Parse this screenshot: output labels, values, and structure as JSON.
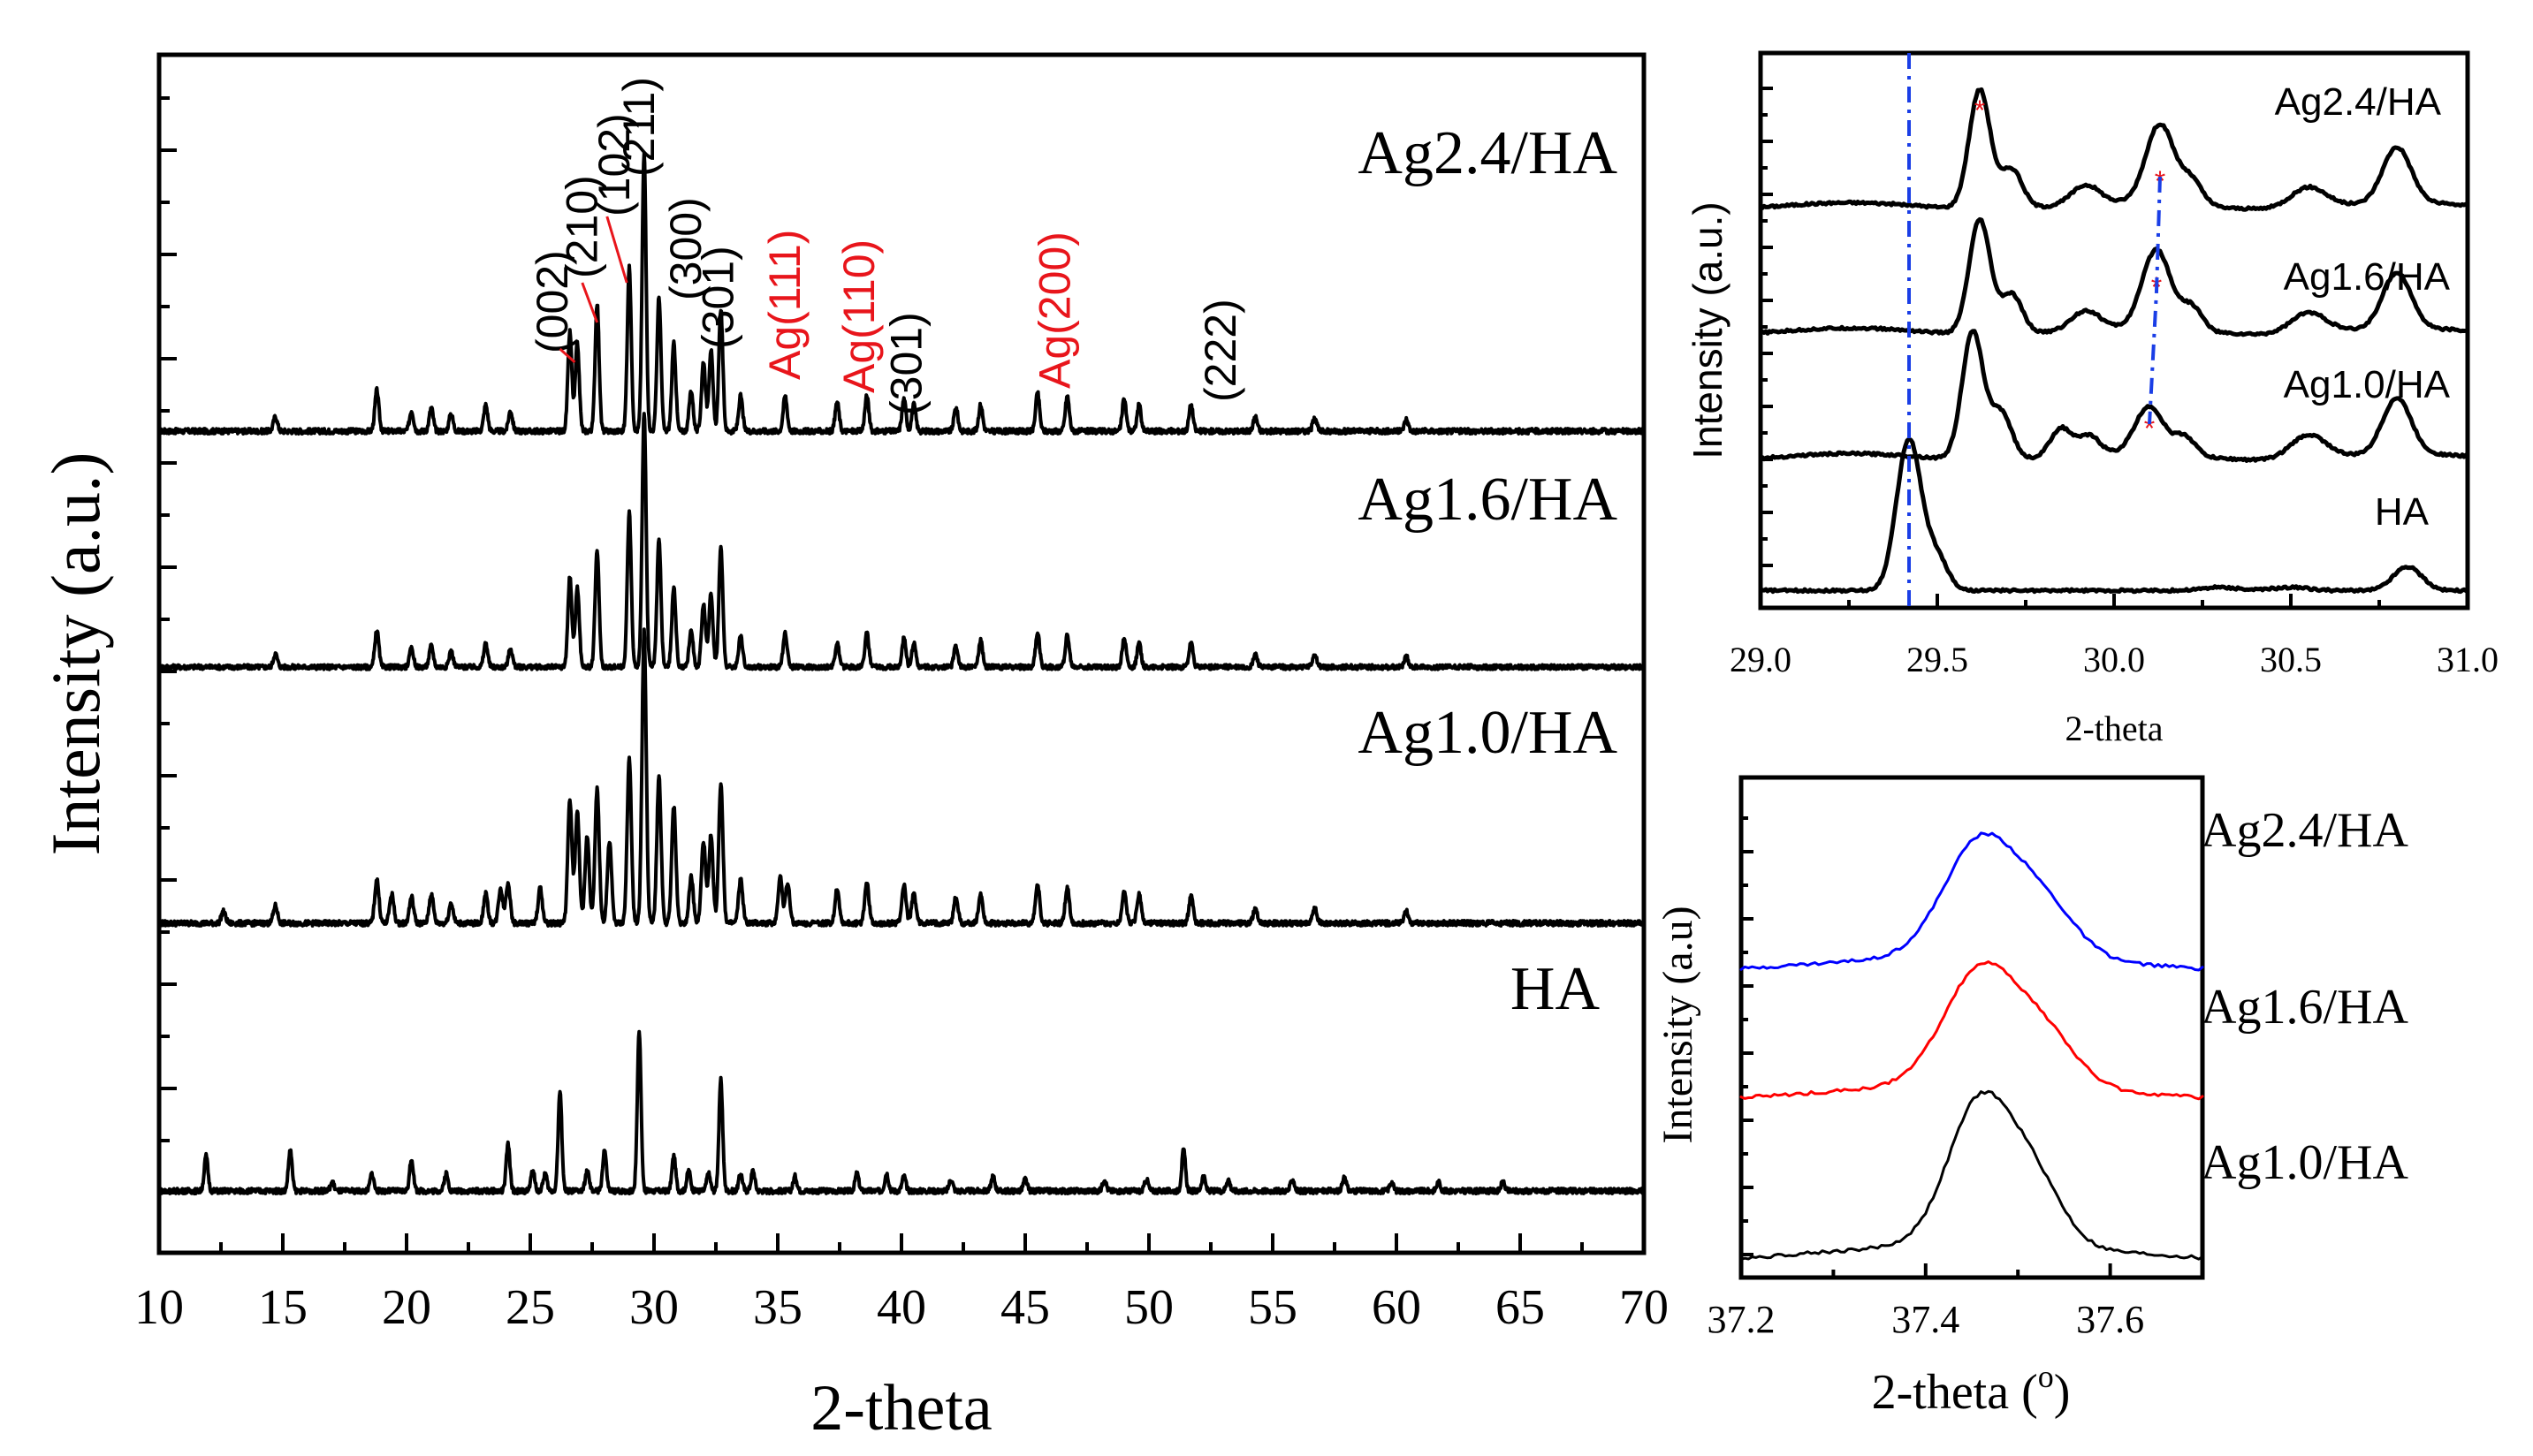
{
  "chart_data": [
    {
      "type": "line",
      "panel": "main",
      "xlabel": "2-theta",
      "ylabel": "Intensity (a.u.)",
      "xlim": [
        10,
        70
      ],
      "xticks": [
        "10",
        "15",
        "20",
        "25",
        "30",
        "35",
        "40",
        "45",
        "50",
        "55",
        "60",
        "65",
        "70"
      ],
      "series": [
        {
          "name": "Ag2.4/HA",
          "color": "#000000",
          "offset": 3,
          "scale": 1.0,
          "peaks": [
            [
              14.7,
              0.05
            ],
            [
              18.8,
              0.14
            ],
            [
              20.2,
              0.07
            ],
            [
              21.0,
              0.08
            ],
            [
              21.8,
              0.06
            ],
            [
              23.2,
              0.09
            ],
            [
              24.2,
              0.07
            ],
            [
              26.6,
              0.34
            ],
            [
              26.9,
              0.3
            ],
            [
              27.7,
              0.44
            ],
            [
              29.0,
              0.56
            ],
            [
              29.6,
              0.95
            ],
            [
              30.2,
              0.46
            ],
            [
              30.8,
              0.3
            ],
            [
              31.5,
              0.14
            ],
            [
              32.0,
              0.24
            ],
            [
              32.3,
              0.28
            ],
            [
              32.7,
              0.42
            ],
            [
              33.5,
              0.12
            ],
            [
              35.3,
              0.12
            ],
            [
              37.4,
              0.1
            ],
            [
              38.6,
              0.12
            ],
            [
              40.1,
              0.11
            ],
            [
              40.5,
              0.09
            ],
            [
              42.2,
              0.08
            ],
            [
              43.2,
              0.09
            ],
            [
              45.5,
              0.13
            ],
            [
              46.7,
              0.12
            ],
            [
              49.0,
              0.11
            ],
            [
              49.6,
              0.09
            ],
            [
              51.7,
              0.09
            ],
            [
              54.3,
              0.05
            ],
            [
              56.7,
              0.05
            ],
            [
              60.4,
              0.04
            ]
          ]
        },
        {
          "name": "Ag1.6/HA",
          "color": "#000000",
          "offset": 2,
          "scale": 1.0,
          "peaks": [
            [
              14.7,
              0.05
            ],
            [
              18.8,
              0.14
            ],
            [
              20.2,
              0.07
            ],
            [
              21.0,
              0.08
            ],
            [
              21.8,
              0.06
            ],
            [
              23.2,
              0.09
            ],
            [
              24.2,
              0.07
            ],
            [
              26.6,
              0.34
            ],
            [
              26.9,
              0.3
            ],
            [
              27.7,
              0.44
            ],
            [
              29.0,
              0.58
            ],
            [
              29.6,
              0.96
            ],
            [
              30.2,
              0.48
            ],
            [
              30.8,
              0.3
            ],
            [
              31.5,
              0.14
            ],
            [
              32.0,
              0.24
            ],
            [
              32.3,
              0.28
            ],
            [
              32.7,
              0.45
            ],
            [
              33.5,
              0.12
            ],
            [
              35.3,
              0.13
            ],
            [
              37.4,
              0.09
            ],
            [
              38.6,
              0.13
            ],
            [
              40.1,
              0.11
            ],
            [
              40.5,
              0.09
            ],
            [
              42.2,
              0.08
            ],
            [
              43.2,
              0.1
            ],
            [
              45.5,
              0.13
            ],
            [
              46.7,
              0.12
            ],
            [
              49.0,
              0.11
            ],
            [
              49.6,
              0.09
            ],
            [
              51.7,
              0.09
            ],
            [
              54.3,
              0.05
            ],
            [
              56.7,
              0.05
            ],
            [
              60.4,
              0.04
            ]
          ]
        },
        {
          "name": "Ag1.0/HA",
          "color": "#000000",
          "offset": 1,
          "scale": 1.0,
          "peaks": [
            [
              12.6,
              0.04
            ],
            [
              14.7,
              0.06
            ],
            [
              18.8,
              0.15
            ],
            [
              19.4,
              0.1
            ],
            [
              20.2,
              0.09
            ],
            [
              21.0,
              0.1
            ],
            [
              21.8,
              0.07
            ],
            [
              23.2,
              0.1
            ],
            [
              23.8,
              0.12
            ],
            [
              24.1,
              0.14
            ],
            [
              25.4,
              0.12
            ],
            [
              26.6,
              0.42
            ],
            [
              26.9,
              0.38
            ],
            [
              27.3,
              0.3
            ],
            [
              27.7,
              0.46
            ],
            [
              28.2,
              0.28
            ],
            [
              29.0,
              0.56
            ],
            [
              29.6,
              1.0
            ],
            [
              30.2,
              0.5
            ],
            [
              30.8,
              0.4
            ],
            [
              31.5,
              0.16
            ],
            [
              32.0,
              0.28
            ],
            [
              32.3,
              0.3
            ],
            [
              32.7,
              0.48
            ],
            [
              33.5,
              0.15
            ],
            [
              35.1,
              0.16
            ],
            [
              35.4,
              0.14
            ],
            [
              37.4,
              0.12
            ],
            [
              38.6,
              0.14
            ],
            [
              40.1,
              0.13
            ],
            [
              40.5,
              0.1
            ],
            [
              42.2,
              0.09
            ],
            [
              43.2,
              0.1
            ],
            [
              45.5,
              0.13
            ],
            [
              46.7,
              0.12
            ],
            [
              49.0,
              0.11
            ],
            [
              49.6,
              0.1
            ],
            [
              51.7,
              0.09
            ],
            [
              54.3,
              0.05
            ],
            [
              56.7,
              0.05
            ],
            [
              60.4,
              0.04
            ]
          ]
        },
        {
          "name": "HA",
          "color": "#000000",
          "offset": 0,
          "scale": 1.0,
          "peaks": [
            [
              11.9,
              0.12
            ],
            [
              15.3,
              0.14
            ],
            [
              17.0,
              0.03
            ],
            [
              18.6,
              0.06
            ],
            [
              20.2,
              0.11
            ],
            [
              21.6,
              0.06
            ],
            [
              24.1,
              0.16
            ],
            [
              25.1,
              0.07
            ],
            [
              25.6,
              0.06
            ],
            [
              26.2,
              0.34
            ],
            [
              27.3,
              0.07
            ],
            [
              28.0,
              0.14
            ],
            [
              29.4,
              0.55
            ],
            [
              30.8,
              0.12
            ],
            [
              31.4,
              0.07
            ],
            [
              32.2,
              0.06
            ],
            [
              32.7,
              0.38
            ],
            [
              33.5,
              0.06
            ],
            [
              34.0,
              0.07
            ],
            [
              35.7,
              0.05
            ],
            [
              38.2,
              0.06
            ],
            [
              39.4,
              0.06
            ],
            [
              40.1,
              0.05
            ],
            [
              42.0,
              0.04
            ],
            [
              43.7,
              0.05
            ],
            [
              45.0,
              0.04
            ],
            [
              48.2,
              0.04
            ],
            [
              49.9,
              0.04
            ],
            [
              51.4,
              0.14
            ],
            [
              52.2,
              0.05
            ],
            [
              53.2,
              0.04
            ],
            [
              55.8,
              0.04
            ],
            [
              57.9,
              0.05
            ],
            [
              59.8,
              0.03
            ],
            [
              61.7,
              0.03
            ],
            [
              64.3,
              0.03
            ]
          ]
        }
      ],
      "annotations": [
        {
          "text": "(002)",
          "x": 26.5,
          "color": "#000000"
        },
        {
          "text": "(210)",
          "x": 27.7,
          "color": "#000000"
        },
        {
          "text": "(102)",
          "x": 29.0,
          "color": "#000000"
        },
        {
          "text": "(211)",
          "x": 30.0,
          "color": "#000000"
        },
        {
          "text": "(300)",
          "x": 31.9,
          "color": "#000000"
        },
        {
          "text": "(301)",
          "x": 33.2,
          "color": "#000000"
        },
        {
          "text": "Ag(111)",
          "x": 35.9,
          "color": "#e8151b"
        },
        {
          "text": "Ag(110)",
          "x": 38.9,
          "color": "#e8151b"
        },
        {
          "text": "(301)",
          "x": 40.8,
          "color": "#000000"
        },
        {
          "text": "Ag(200)",
          "x": 46.8,
          "color": "#e8151b"
        },
        {
          "text": "(222)",
          "x": 53.5,
          "color": "#000000"
        }
      ]
    },
    {
      "type": "line",
      "panel": "inset-top",
      "xlabel": "2-theta",
      "ylabel": "Intensity (a.u.)",
      "xlim": [
        29.0,
        31.0
      ],
      "xticks": [
        "29.0",
        "29.5",
        "30.0",
        "30.5",
        "31.0"
      ],
      "reference_line_x": 29.42,
      "series": [
        {
          "name": "Ag2.4/HA",
          "color": "#000000",
          "offset": 3,
          "peaks": [
            [
              29.62,
              0.75,
              0.03
            ],
            [
              29.71,
              0.25,
              0.03
            ],
            [
              29.92,
              0.12,
              0.04
            ],
            [
              30.13,
              0.5,
              0.04
            ],
            [
              30.22,
              0.15,
              0.03
            ],
            [
              30.55,
              0.13,
              0.05
            ],
            [
              30.8,
              0.35,
              0.04
            ]
          ]
        },
        {
          "name": "Ag1.6/HA",
          "color": "#000000",
          "offset": 2,
          "peaks": [
            [
              29.62,
              0.72,
              0.03
            ],
            [
              29.71,
              0.25,
              0.03
            ],
            [
              29.92,
              0.12,
              0.04
            ],
            [
              30.12,
              0.5,
              0.04
            ],
            [
              30.22,
              0.15,
              0.03
            ],
            [
              30.55,
              0.13,
              0.05
            ],
            [
              30.8,
              0.35,
              0.04
            ]
          ]
        },
        {
          "name": "Ag1.0/HA",
          "color": "#000000",
          "offset": 1,
          "peaks": [
            [
              29.6,
              0.8,
              0.03
            ],
            [
              29.68,
              0.3,
              0.03
            ],
            [
              29.85,
              0.18,
              0.03
            ],
            [
              29.93,
              0.12,
              0.03
            ],
            [
              30.1,
              0.3,
              0.04
            ],
            [
              30.2,
              0.12,
              0.03
            ],
            [
              30.55,
              0.15,
              0.05
            ],
            [
              30.8,
              0.35,
              0.04
            ]
          ]
        },
        {
          "name": "HA",
          "color": "#000000",
          "offset": 0,
          "peaks": [
            [
              29.42,
              0.95,
              0.035
            ],
            [
              29.5,
              0.2,
              0.03
            ],
            [
              30.3,
              0.02,
              0.05
            ],
            [
              30.5,
              0.02,
              0.05
            ],
            [
              30.83,
              0.15,
              0.04
            ]
          ]
        }
      ]
    },
    {
      "type": "line",
      "panel": "inset-bottom",
      "xlabel": "2-theta (o)",
      "ylabel": "Intensity (a.u)",
      "xlim": [
        37.2,
        37.7
      ],
      "xticks": [
        "37.2",
        "37.4",
        "37.6"
      ],
      "series": [
        {
          "name": "Ag2.4/HA",
          "color": "#0000ff",
          "offset": 2,
          "peaks": [
            [
              37.46,
              0.85,
              0.04
            ],
            [
              37.53,
              0.35,
              0.035
            ]
          ]
        },
        {
          "name": "Ag1.6/HA",
          "color": "#ff0000",
          "offset": 1,
          "peaks": [
            [
              37.46,
              0.85,
              0.04
            ],
            [
              37.53,
              0.35,
              0.035
            ]
          ]
        },
        {
          "name": "Ag1.0/HA",
          "color": "#000000",
          "offset": 0,
          "peaks": [
            [
              37.46,
              1.0,
              0.035
            ],
            [
              37.52,
              0.4,
              0.03
            ]
          ]
        }
      ]
    }
  ]
}
